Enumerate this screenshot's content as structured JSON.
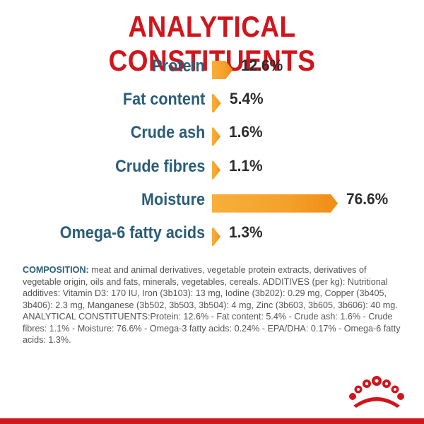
{
  "title": "ANALYTICAL CONSTITUENTS",
  "colors": {
    "title_red": "#d0161d",
    "label_teal": "#2a5d77",
    "bar_orange": "#f4a12a"
  },
  "constituents": [
    {
      "label": "Protein",
      "value": "12.6%",
      "percent": 12.6
    },
    {
      "label": "Fat content",
      "value": "5.4%",
      "percent": 5.4
    },
    {
      "label": "Crude ash",
      "value": "1.6%",
      "percent": 1.6
    },
    {
      "label": "Crude fibres",
      "value": "1.1%",
      "percent": 1.1
    },
    {
      "label": "Moisture",
      "value": "76.6%",
      "percent": 76.6
    },
    {
      "label": "Omega-6 fatty acids",
      "value": "1.3%",
      "percent": 1.3
    }
  ],
  "composition": {
    "heading": "COMPOSITION:",
    "text": " meat and animal derivatives, vegetable protein extracts, derivatives of vegetable origin, oils and fats, minerals, vegetables, cereals. ADDITIVES (per kg): Nutritional additives: Vitamin D3: 170 IU, Iron (3b103): 13 mg, Iodine (3b202): 0.29 mg, Copper (3b405, 3b406): 2.3 mg, Manganese (3b502, 3b503, 3b504): 4 mg, Zinc (3b603, 3b605, 3b606): 40 mg. ANALYTICAL CONSTITUENTS:Protein: 12.6% - Fat content: 5.4% - Crude ash: 1.6% - Crude fibres: 1.1% - Moisture: 76.6% - Omega-3 fatty acids: 0.24% - EPA/DHA: 0.17% - Omega-6 fatty acids: 1.3%."
  },
  "logo": {
    "icon": "royal-crown-icon"
  }
}
